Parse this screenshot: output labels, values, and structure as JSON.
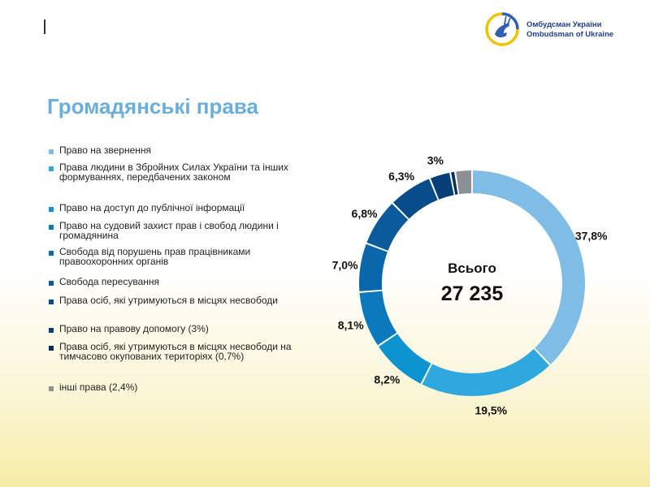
{
  "header": {
    "logo": {
      "name_ua": "Омбудсман України",
      "name_en": "Ombudsman of Ukraine"
    }
  },
  "page": {
    "title": "Громадянські права"
  },
  "legend": {
    "items": [
      {
        "label": "Право на звернення",
        "color": "#7fbde7"
      },
      {
        "label": "Права людини в Збройних Силах України та інших формуваннях, передбачених законом",
        "color": "#2ea8df"
      },
      {
        "label": "Право на доступ до публічної інформації",
        "color": "#0c93d0"
      },
      {
        "label": "Право на судовий захист прав і свобод людини і громадянина",
        "color": "#0d79bd"
      },
      {
        "label": "Свобода від порушень прав працівниками правоохоронних органів",
        "color": "#0b67ab"
      },
      {
        "label": "Свобода пересування",
        "color": "#0a5a9c"
      },
      {
        "label": "Права осіб, які утримуються в місцях несвободи",
        "color": "#084c8a"
      },
      {
        "label": "Право на правову допомогу (3%)",
        "color": "#073f78"
      },
      {
        "label": "Права осіб, які утримуються в місцях несвободи на тимчасово окупованих територіях (0,7%)",
        "color": "#0a2d5c"
      },
      {
        "label": "інші права (2,4%)",
        "color": "#8c9095"
      }
    ]
  },
  "chart_data": {
    "type": "pie",
    "variant": "donut",
    "center_label": "Всього",
    "center_value": "27 235",
    "slices": [
      {
        "name": "Право на звернення",
        "value": 37.8,
        "label": "37,8%",
        "color": "#7fbde7"
      },
      {
        "name": "Права людини в Збройних Силах України та інших формуваннях, передбачених законом",
        "value": 19.5,
        "label": "19,5%",
        "color": "#2ea8df"
      },
      {
        "name": "Право на доступ до публічної інформації",
        "value": 8.2,
        "label": "8,2%",
        "color": "#0c93d0"
      },
      {
        "name": "Право на судовий захист прав і свобод людини і громадянина",
        "value": 8.1,
        "label": "8,1%",
        "color": "#0d79bd"
      },
      {
        "name": "Свобода від порушень прав працівниками правоохоронних органів",
        "value": 7.0,
        "label": "7,0%",
        "color": "#0b67ab"
      },
      {
        "name": "Свобода пересування",
        "value": 6.8,
        "label": "6,8%",
        "color": "#0a5a9c"
      },
      {
        "name": "Права осіб, які утримуються в місцях несвободи",
        "value": 6.3,
        "label": "6,3%",
        "color": "#084c8a"
      },
      {
        "name": "Право на правову допомогу",
        "value": 3.0,
        "label": "3%",
        "color": "#073f78"
      },
      {
        "name": "Права осіб, які утримуються в місцях несвободи на тимчасово окупованих територіях",
        "value": 0.7,
        "label": "",
        "color": "#0a2d5c"
      },
      {
        "name": "інші права",
        "value": 2.4,
        "label": "",
        "color": "#8c9095"
      }
    ]
  }
}
